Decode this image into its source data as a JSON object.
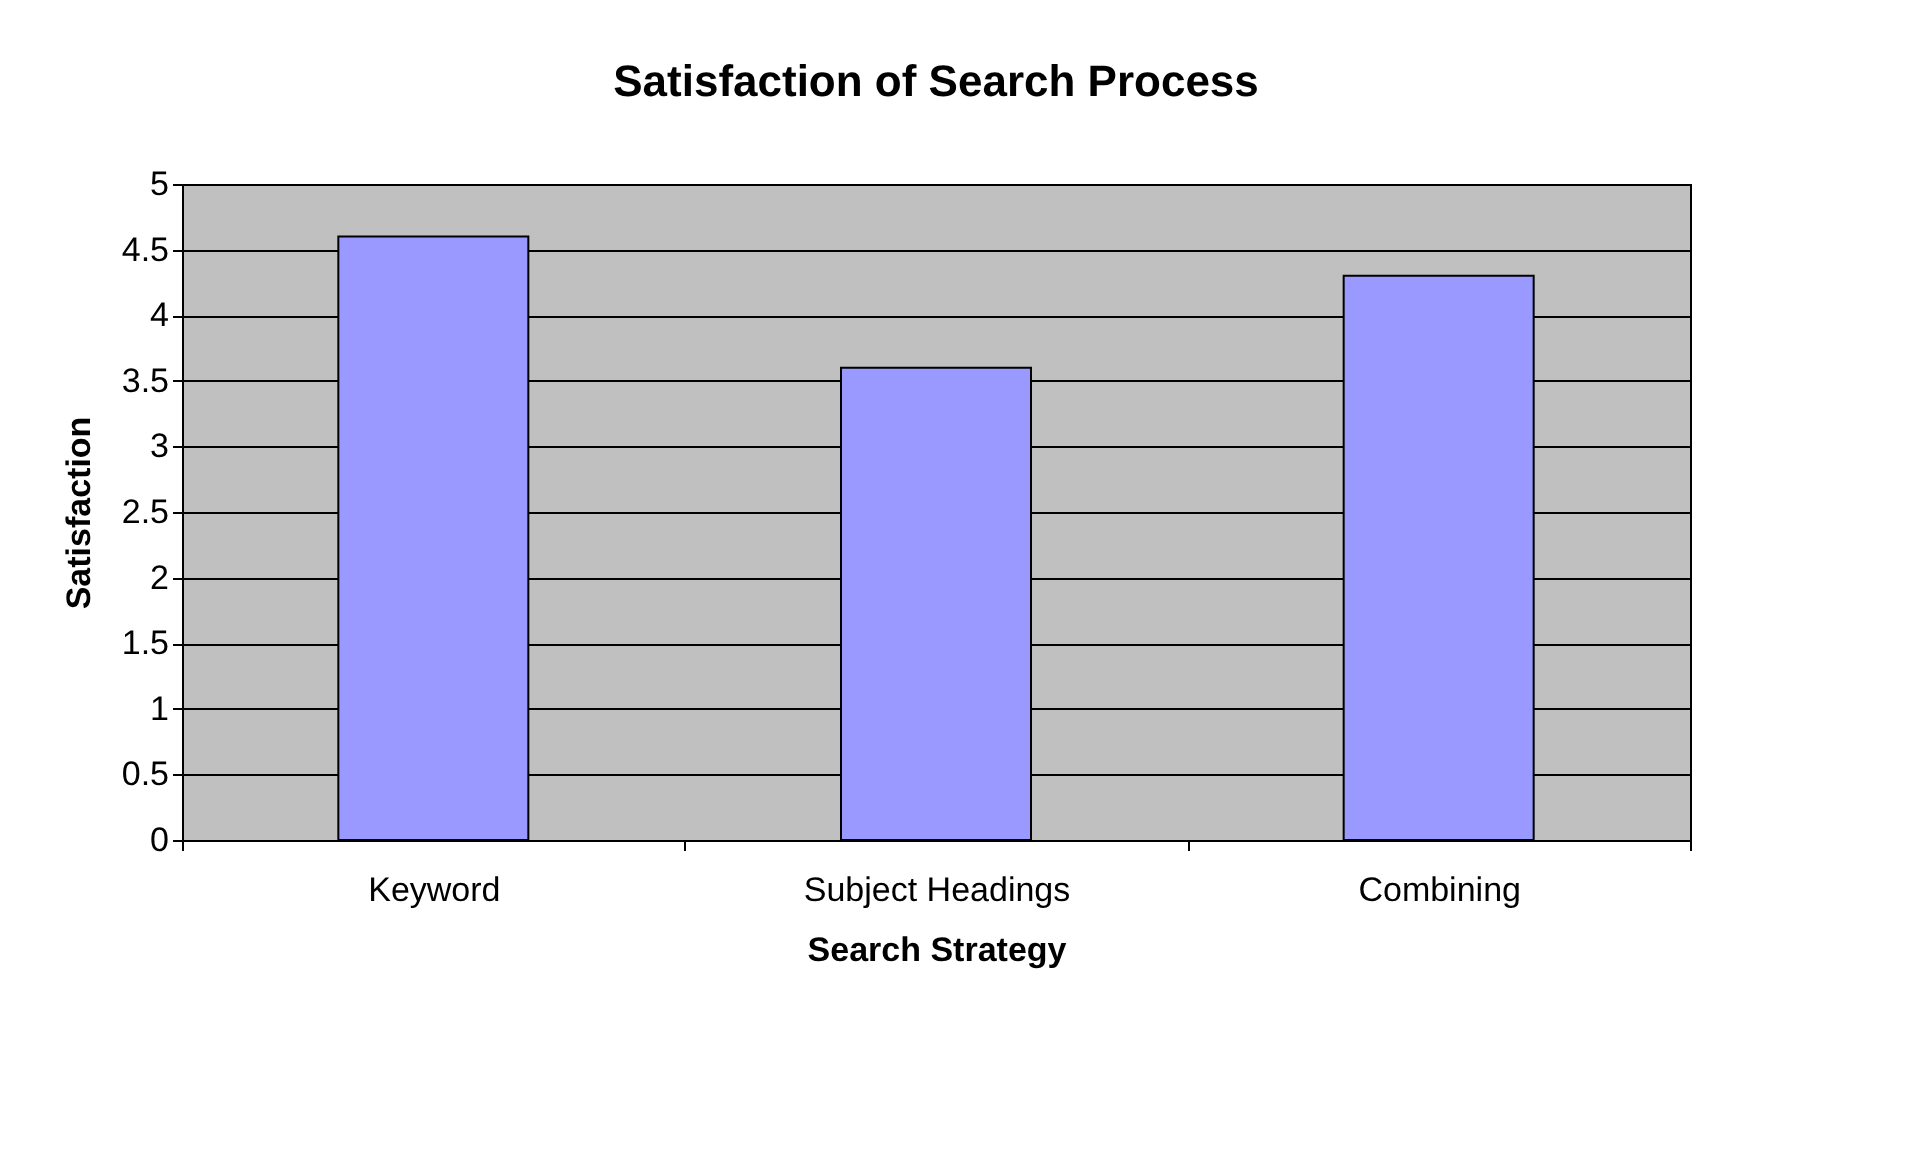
{
  "chart_data": {
    "type": "bar",
    "title": "Satisfaction of Search Process",
    "xlabel": "Search Strategy",
    "ylabel": "Satisfaction",
    "categories": [
      "Keyword",
      "Subject Headings",
      "Combining"
    ],
    "values": [
      4.6,
      3.6,
      4.3
    ],
    "color": "#9999ff",
    "ylim": [
      0,
      5
    ],
    "yticks": [
      0,
      0.5,
      1,
      1.5,
      2,
      2.5,
      3,
      3.5,
      4,
      4.5,
      5
    ],
    "grid": "y"
  }
}
